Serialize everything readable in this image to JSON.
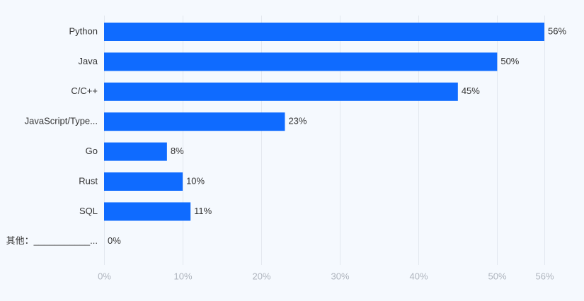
{
  "chart_data": {
    "type": "bar",
    "orientation": "horizontal",
    "categories": [
      "Python",
      "Java",
      "C/C++",
      "JavaScript/Type...",
      "Go",
      "Rust",
      "SQL",
      "其他：___________..."
    ],
    "values": [
      56,
      50,
      45,
      23,
      8,
      10,
      11,
      0
    ],
    "value_labels": [
      "56%",
      "50%",
      "45%",
      "23%",
      "8%",
      "10%",
      "11%",
      "0%"
    ],
    "xticks": [
      0,
      10,
      20,
      30,
      40,
      50,
      56
    ],
    "xtick_labels": [
      "0%",
      "10%",
      "20%",
      "30%",
      "40%",
      "50%",
      "56%"
    ],
    "xlim": [
      0,
      56
    ],
    "grid": true,
    "bar_color": "#0f6bff",
    "title": "",
    "xlabel": "",
    "ylabel": ""
  }
}
